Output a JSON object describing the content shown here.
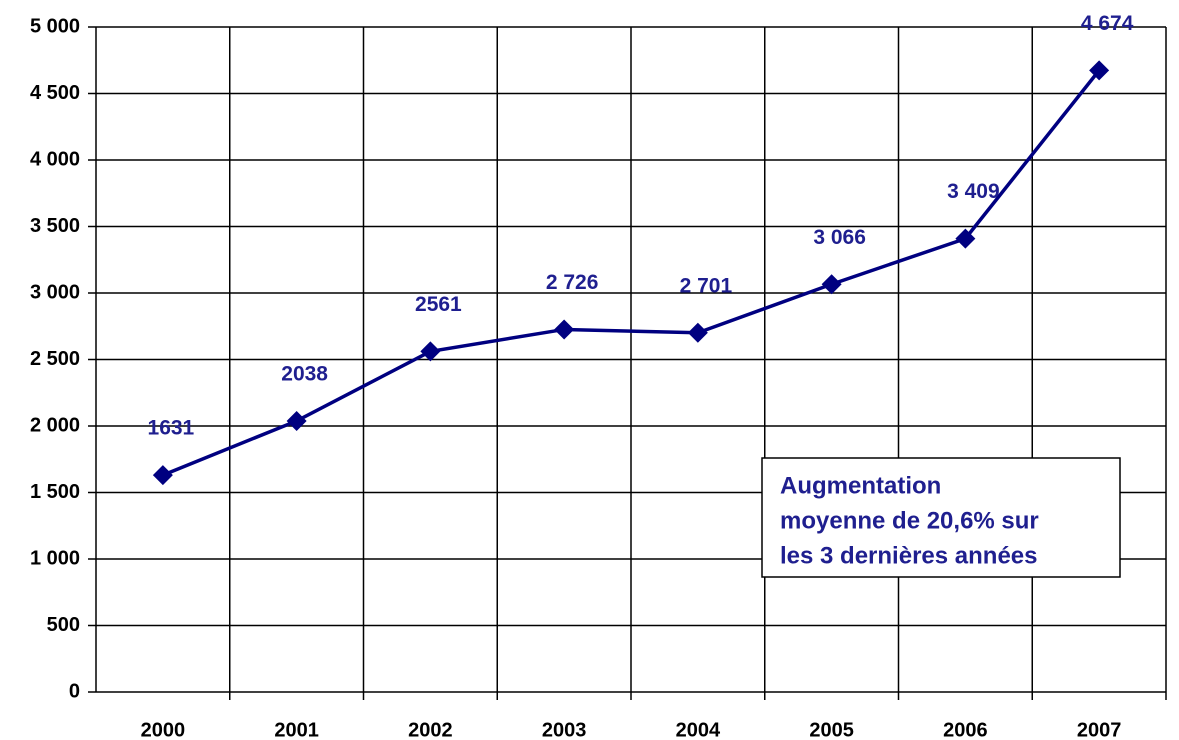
{
  "chart_data": {
    "type": "line",
    "categories": [
      "2000",
      "2001",
      "2002",
      "2003",
      "2004",
      "2005",
      "2006",
      "2007"
    ],
    "values": [
      1631,
      2038,
      2561,
      2726,
      2701,
      3066,
      3409,
      4674
    ],
    "value_labels": [
      "1631",
      "2038",
      "2561",
      "2 726",
      "2 701",
      "3 066",
      "3 409",
      "4 674"
    ],
    "color": "#000080",
    "ylim": [
      0,
      5000
    ],
    "yticks": [
      0,
      500,
      {
        "value": 1000,
        "label": "1 000"
      },
      {
        "value": 1500,
        "label": "1 500"
      },
      {
        "value": 2000,
        "label": "2 000"
      },
      {
        "value": 2500,
        "label": "2 500"
      },
      {
        "value": 3000,
        "label": "3 000"
      },
      {
        "value": 3500,
        "label": "3 500"
      },
      {
        "value": 4000,
        "label": "4 000"
      },
      {
        "value": 4500,
        "label": "4 500"
      },
      {
        "value": 5000,
        "label": "5 000"
      }
    ],
    "grid": true,
    "annotation": [
      "Augmentation",
      "moyenne de 20,6% sur",
      "les 3 dernières années"
    ]
  }
}
